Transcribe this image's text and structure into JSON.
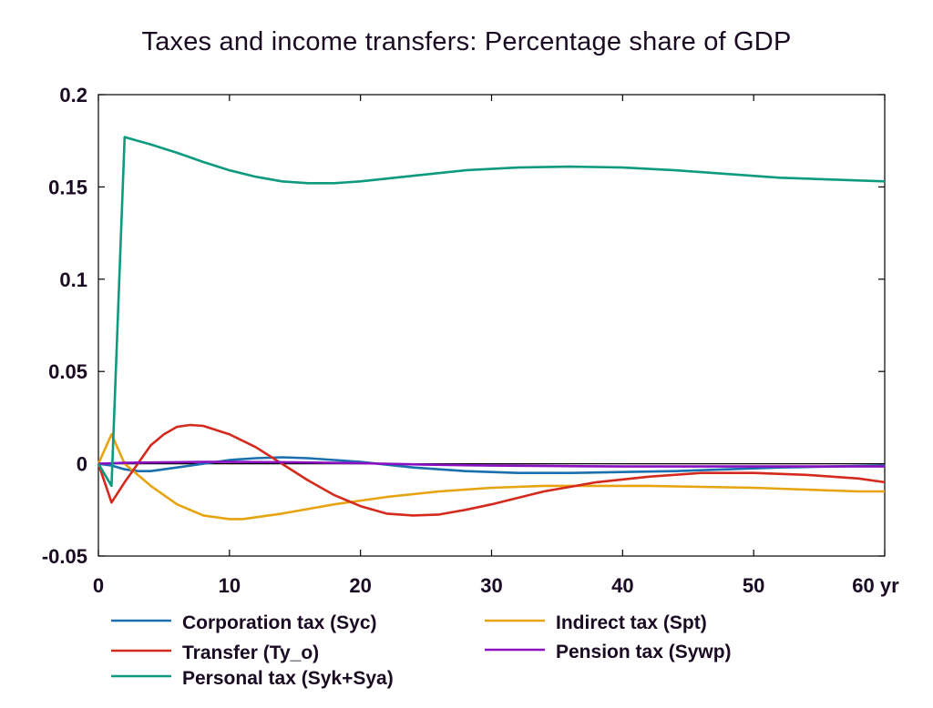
{
  "chart_data": {
    "type": "line",
    "title": "Taxes and income transfers: Percentage share of GDP",
    "x_unit_label": "yr",
    "xlim": [
      0,
      60
    ],
    "ylim": [
      -0.05,
      0.2
    ],
    "x_ticks": [
      0,
      10,
      20,
      30,
      40,
      50,
      60
    ],
    "x_tick_labels": [
      "0",
      "10",
      "20",
      "30",
      "40",
      "50",
      "60 yr"
    ],
    "y_ticks": [
      -0.05,
      0,
      0.05,
      0.1,
      0.15,
      0.2
    ],
    "y_tick_labels": [
      "-0.05",
      "0",
      "0.05",
      "0.1",
      "0.15",
      "0.2"
    ],
    "grid": false,
    "legend_position": "bottom",
    "series": [
      {
        "name": "Corporation tax (Syc)",
        "color": "#1a6faf",
        "x": [
          0,
          1,
          2,
          3,
          4,
          6,
          8,
          10,
          12,
          14,
          16,
          18,
          20,
          24,
          28,
          32,
          36,
          40,
          44,
          48,
          52,
          56,
          60
        ],
        "y": [
          0,
          -0.001,
          -0.003,
          -0.004,
          -0.004,
          -0.002,
          0.0,
          0.002,
          0.003,
          0.0035,
          0.003,
          0.002,
          0.001,
          -0.002,
          -0.004,
          -0.005,
          -0.005,
          -0.0045,
          -0.004,
          -0.003,
          -0.002,
          -0.0015,
          -0.001
        ]
      },
      {
        "name": "Indirect tax (Spt)",
        "color": "#e8a410",
        "x": [
          0,
          1,
          2,
          4,
          6,
          8,
          10,
          11,
          14,
          18,
          22,
          26,
          30,
          34,
          38,
          42,
          46,
          50,
          54,
          58,
          60
        ],
        "y": [
          0,
          0.016,
          0.0,
          -0.012,
          -0.022,
          -0.028,
          -0.03,
          -0.03,
          -0.027,
          -0.022,
          -0.018,
          -0.015,
          -0.013,
          -0.012,
          -0.012,
          -0.012,
          -0.0125,
          -0.013,
          -0.014,
          -0.015,
          -0.015
        ]
      },
      {
        "name": "Transfer (Ty_o)",
        "color": "#d42a1e",
        "x": [
          0,
          1,
          2,
          3,
          4,
          5,
          6,
          7,
          8,
          10,
          12,
          14,
          16,
          18,
          20,
          22,
          24,
          26,
          28,
          30,
          34,
          38,
          42,
          46,
          50,
          54,
          58,
          60
        ],
        "y": [
          0,
          -0.021,
          -0.01,
          0.0,
          0.01,
          0.016,
          0.02,
          0.021,
          0.0205,
          0.016,
          0.009,
          0.0,
          -0.009,
          -0.017,
          -0.023,
          -0.027,
          -0.028,
          -0.0275,
          -0.025,
          -0.022,
          -0.015,
          -0.01,
          -0.007,
          -0.005,
          -0.005,
          -0.006,
          -0.008,
          -0.01
        ]
      },
      {
        "name": "Pension tax (Sywp)",
        "color": "#8a10c0",
        "x": [
          0,
          2,
          5,
          8,
          10,
          15,
          20,
          25,
          30,
          40,
          50,
          60
        ],
        "y": [
          0,
          0.0005,
          0.0008,
          0.001,
          0.001,
          0.0008,
          0.0003,
          -0.0005,
          -0.001,
          -0.0015,
          -0.0015,
          -0.0015
        ]
      },
      {
        "name": "Personal tax (Syk+Sya)",
        "color": "#0e9a7e",
        "x": [
          0,
          1,
          2,
          3,
          4,
          6,
          8,
          10,
          12,
          14,
          16,
          18,
          20,
          24,
          28,
          32,
          36,
          40,
          44,
          48,
          52,
          56,
          60
        ],
        "y": [
          0,
          -0.012,
          0.177,
          0.175,
          0.173,
          0.1685,
          0.1635,
          0.159,
          0.1555,
          0.153,
          0.152,
          0.152,
          0.153,
          0.156,
          0.159,
          0.1605,
          0.161,
          0.1605,
          0.159,
          0.157,
          0.155,
          0.154,
          0.153
        ]
      }
    ],
    "legend": [
      {
        "series_index": 0,
        "column": 0,
        "row": 0
      },
      {
        "series_index": 2,
        "column": 0,
        "row": 1
      },
      {
        "series_index": 4,
        "column": 0,
        "row": 2
      },
      {
        "series_index": 1,
        "column": 1,
        "row": 0
      },
      {
        "series_index": 3,
        "column": 1,
        "row": 1
      }
    ]
  }
}
